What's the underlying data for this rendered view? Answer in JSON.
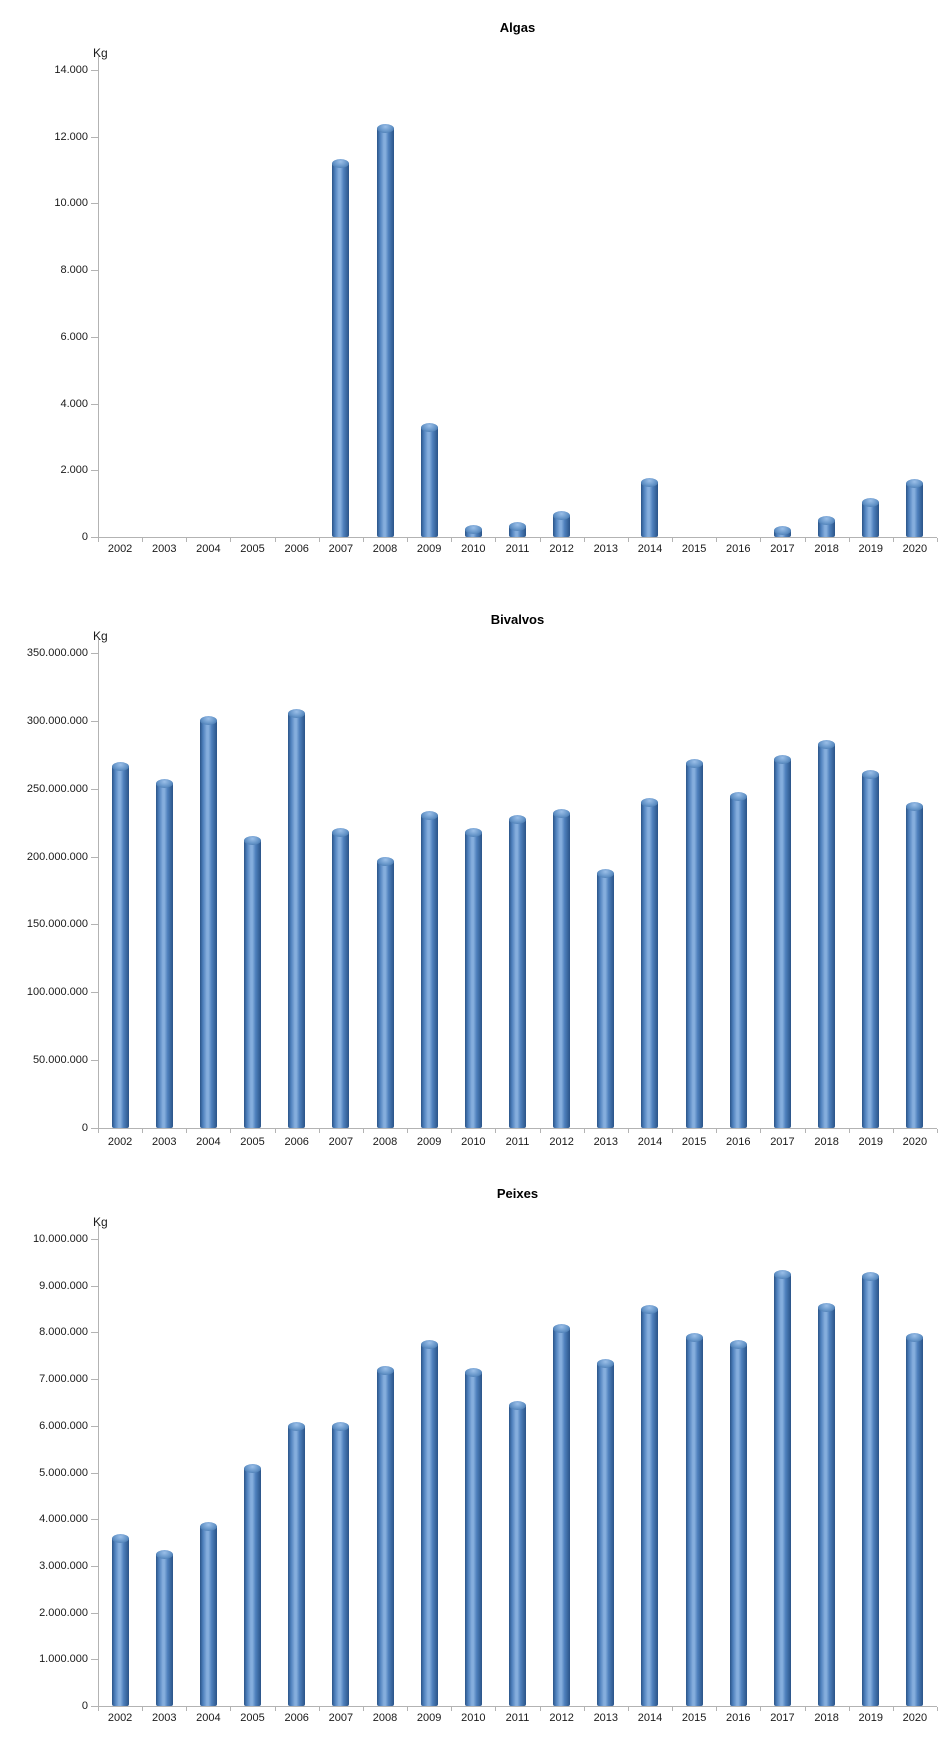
{
  "page": {
    "background": "#ffffff"
  },
  "colors": {
    "bar_fill": "#4f81bd",
    "bar_highlight": "#85aedd",
    "bar_edge": "#2a5488",
    "bar_cap_fill": "#6494c8",
    "bar_cap_highlight": "#9bbfe8",
    "bar_cap_edge": "#35659c",
    "axis": "#b3b3b3",
    "text": "#1a1a1a",
    "title": "#000000"
  },
  "chart_data": [
    {
      "type": "bar",
      "title": "Algas",
      "unit_label": "Kg",
      "xlabel": "",
      "ylabel": "Kg",
      "grid": false,
      "legend": "none",
      "categories": [
        "2002",
        "2003",
        "2004",
        "2005",
        "2006",
        "2007",
        "2008",
        "2009",
        "2010",
        "2011",
        "2012",
        "2013",
        "2014",
        "2015",
        "2016",
        "2017",
        "2018",
        "2019",
        "2020"
      ],
      "values": [
        0,
        0,
        0,
        0,
        0,
        11200,
        12250,
        3300,
        250,
        320,
        650,
        0,
        1650,
        0,
        0,
        200,
        500,
        1050,
        1620
      ],
      "ylim": [
        0,
        14000
      ],
      "ytick_step": 2000,
      "ytick_labels": [
        "0",
        "2.000",
        "4.000",
        "6.000",
        "8.000",
        "10.000",
        "12.000",
        "14.000"
      ]
    },
    {
      "type": "bar",
      "title": "Bivalvos",
      "unit_label": "Kg",
      "xlabel": "",
      "ylabel": "Kg",
      "grid": false,
      "legend": "none",
      "categories": [
        "2002",
        "2003",
        "2004",
        "2005",
        "2006",
        "2007",
        "2008",
        "2009",
        "2010",
        "2011",
        "2012",
        "2013",
        "2014",
        "2015",
        "2016",
        "2017",
        "2018",
        "2019",
        "2020"
      ],
      "values": [
        267000000,
        254000000,
        301000000,
        212000000,
        306000000,
        218000000,
        197000000,
        231000000,
        218000000,
        228000000,
        232000000,
        188000000,
        240000000,
        269000000,
        245000000,
        272000000,
        283000000,
        261000000,
        237000000
      ],
      "ylim": [
        0,
        350000000
      ],
      "ytick_step": 50000000,
      "ytick_labels": [
        "0",
        "50.000.000",
        "100.000.000",
        "150.000.000",
        "200.000.000",
        "250.000.000",
        "300.000.000",
        "350.000.000"
      ]
    },
    {
      "type": "bar",
      "title": "Peixes",
      "unit_label": "Kg",
      "xlabel": "",
      "ylabel": "Kg",
      "grid": false,
      "legend": "none",
      "categories": [
        "2002",
        "2003",
        "2004",
        "2005",
        "2006",
        "2007",
        "2008",
        "2009",
        "2010",
        "2011",
        "2012",
        "2013",
        "2014",
        "2015",
        "2016",
        "2017",
        "2018",
        "2019",
        "2020"
      ],
      "values": [
        3600000,
        3250000,
        3850000,
        5100000,
        6000000,
        6000000,
        7200000,
        7750000,
        7150000,
        6450000,
        8100000,
        7350000,
        8500000,
        7900000,
        7750000,
        9250000,
        8550000,
        9200000,
        7900000
      ],
      "ylim": [
        0,
        10000000
      ],
      "ytick_step": 1000000,
      "ytick_labels": [
        "0",
        "1.000.000",
        "2.000.000",
        "3.000.000",
        "4.000.000",
        "5.000.000",
        "6.000.000",
        "7.000.000",
        "8.000.000",
        "9.000.000",
        "10.000.000"
      ]
    }
  ]
}
